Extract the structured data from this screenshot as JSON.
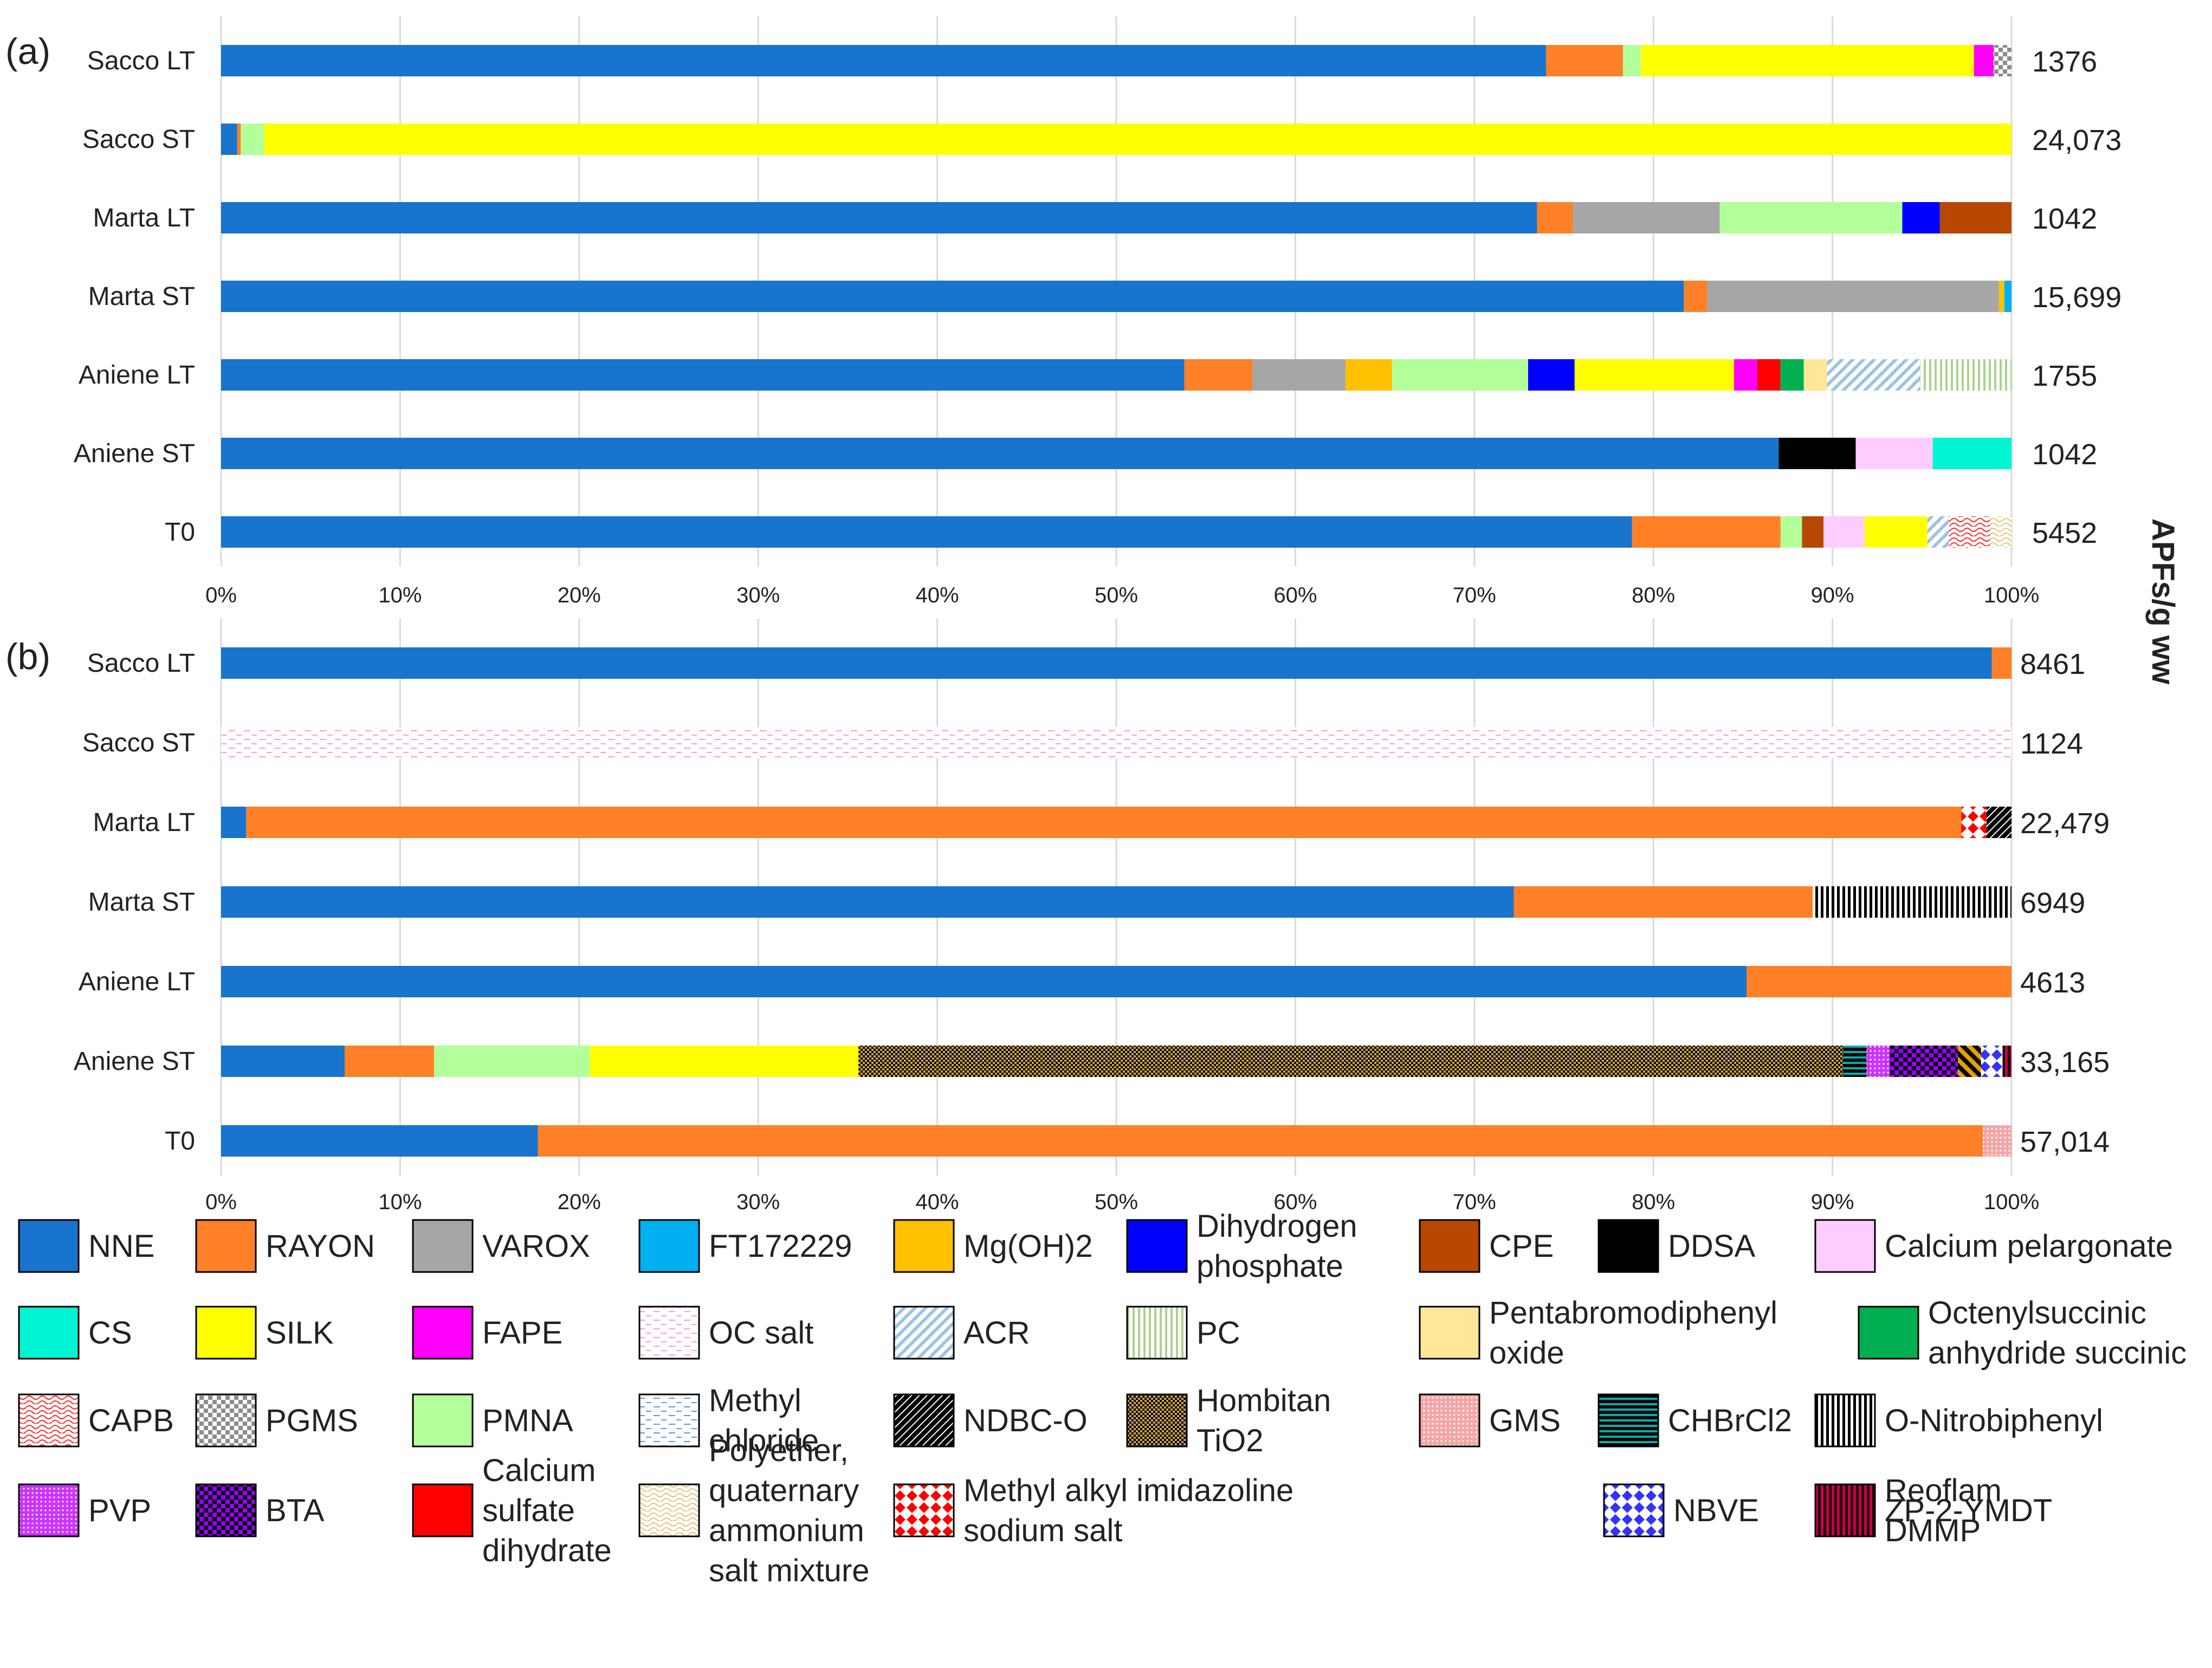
{
  "y_axis_title": "APFs/g ww",
  "colors": {
    "NNE": "#1874CD",
    "RAYON": "#FF8026",
    "VAROX": "#A6A6A6",
    "FT172229": "#00B0F0",
    "Mg(OH)2": "#FFC000",
    "Dihydrogen phosphate": "#0000FF",
    "CPE": "#B84700",
    "DDSA": "#000000",
    "Calcium pelargonate": "#FFCCFF",
    "CS": "#00F5D4",
    "SILK": "#FFFF00",
    "FAPE": "#FF00FF",
    "OC salt": "#FF99DD",
    "ACR": "#9DC3E6",
    "PC": "#A9D18E",
    "Pentabromodiphenyl oxide": "#FFE699",
    "Octenylsuccinic anhydride succinic": "#00B050",
    "CAPB": "#FF2020",
    "PGMS": "#8C8C8C",
    "PMNA": "#B3FF99",
    "Methyl chloride": "#5B9BD5",
    "NDBC-O": "#000000",
    "Hombitan TiO2": "#C9A24B",
    "GMS": "#F4A6A6",
    "CHBrCl2": "#00B0B0",
    "O-Nitrobiphenyl": "#000000",
    "PVP": "#CC33FF",
    "BTA": "#9900FF",
    "Calcium sulfate dihydrate": "#FF0000",
    "Polyether, quaternary ammonium salt mixture": "#E8C070",
    "Methyl alkyl imidazoline sodium salt": "#FF0000",
    "NBVE": "#3333FF",
    "Reoflam DMMP": "#E8A000",
    "ZP-2-YMDT": "#CC0044"
  },
  "chart_data": [
    {
      "type": "bar",
      "orientation": "horizontal",
      "stacking": "percent",
      "panel_label": "(a)",
      "categories": [
        "Sacco LT",
        "Sacco ST",
        "Marta LT",
        "Marta ST",
        "Aniene LT",
        "Aniene ST",
        "T0"
      ],
      "totals": [
        "1376",
        "24,073",
        "1042",
        "15,699",
        "1755",
        "1042",
        "5452"
      ],
      "xlim": [
        0,
        100
      ],
      "x_ticks": [
        "0%",
        "10%",
        "20%",
        "30%",
        "40%",
        "50%",
        "60%",
        "70%",
        "80%",
        "90%",
        "100%"
      ],
      "grid": true,
      "rows": [
        {
          "category": "Sacco LT",
          "segments": [
            {
              "name": "NNE",
              "value": 74
            },
            {
              "name": "RAYON",
              "value": 4.3
            },
            {
              "name": "PMNA",
              "value": 1
            },
            {
              "name": "SILK",
              "value": 18.6
            },
            {
              "name": "FAPE",
              "value": 1.1
            },
            {
              "name": "PGMS",
              "value": 1
            }
          ]
        },
        {
          "category": "Sacco ST",
          "segments": [
            {
              "name": "NNE",
              "value": 0.9
            },
            {
              "name": "RAYON",
              "value": 0.2
            },
            {
              "name": "PMNA",
              "value": 1.3
            },
            {
              "name": "SILK",
              "value": 97.6
            }
          ]
        },
        {
          "category": "Marta LT",
          "segments": [
            {
              "name": "NNE",
              "value": 73.5
            },
            {
              "name": "RAYON",
              "value": 2
            },
            {
              "name": "VAROX",
              "value": 8.2
            },
            {
              "name": "PMNA",
              "value": 10.2
            },
            {
              "name": "Dihydrogen phosphate",
              "value": 2.1
            },
            {
              "name": "CPE",
              "value": 4
            }
          ]
        },
        {
          "category": "Marta ST",
          "segments": [
            {
              "name": "NNE",
              "value": 81.7
            },
            {
              "name": "RAYON",
              "value": 1.3
            },
            {
              "name": "VAROX",
              "value": 16.3
            },
            {
              "name": "Mg(OH)2",
              "value": 0.3
            },
            {
              "name": "FT172229",
              "value": 0.4
            }
          ]
        },
        {
          "category": "Aniene LT",
          "segments": [
            {
              "name": "NNE",
              "value": 53.8
            },
            {
              "name": "RAYON",
              "value": 3.8
            },
            {
              "name": "VAROX",
              "value": 5.2
            },
            {
              "name": "Mg(OH)2",
              "value": 2.6
            },
            {
              "name": "PMNA",
              "value": 7.6
            },
            {
              "name": "Dihydrogen phosphate",
              "value": 2.6
            },
            {
              "name": "SILK",
              "value": 8.9
            },
            {
              "name": "FAPE",
              "value": 1.3
            },
            {
              "name": "Calcium sulfate dihydrate",
              "value": 1.3
            },
            {
              "name": "Octenylsuccinic anhydride succinic",
              "value": 1.3
            },
            {
              "name": "Pentabromodiphenyl oxide",
              "value": 1.3
            },
            {
              "name": "ACR",
              "value": 5.2
            },
            {
              "name": "PC",
              "value": 5.1
            }
          ]
        },
        {
          "category": "Aniene ST",
          "segments": [
            {
              "name": "NNE",
              "value": 87
            },
            {
              "name": "DDSA",
              "value": 4.3
            },
            {
              "name": "Calcium pelargonate",
              "value": 4.3
            },
            {
              "name": "CS",
              "value": 4.4
            }
          ]
        },
        {
          "category": "T0",
          "segments": [
            {
              "name": "NNE",
              "value": 78.8
            },
            {
              "name": "RAYON",
              "value": 8.3
            },
            {
              "name": "PMNA",
              "value": 1.2
            },
            {
              "name": "CPE",
              "value": 1.2
            },
            {
              "name": "Calcium pelargonate",
              "value": 2.3
            },
            {
              "name": "SILK",
              "value": 3.5
            },
            {
              "name": "ACR",
              "value": 1.2
            },
            {
              "name": "CAPB",
              "value": 2.3
            },
            {
              "name": "Polyether, quaternary ammonium salt mixture",
              "value": 1.2
            }
          ]
        }
      ]
    },
    {
      "type": "bar",
      "orientation": "horizontal",
      "stacking": "percent",
      "panel_label": "(b)",
      "categories": [
        "Sacco LT",
        "Sacco ST",
        "Marta LT",
        "Marta ST",
        "Aniene LT",
        "Aniene ST",
        "T0"
      ],
      "totals": [
        "8461",
        "1124",
        "22,479",
        "6949",
        "4613",
        "33,165",
        "57,014"
      ],
      "xlim": [
        0,
        100
      ],
      "x_ticks": [
        "0%",
        "10%",
        "20%",
        "30%",
        "40%",
        "50%",
        "60%",
        "70%",
        "80%",
        "90%",
        "100%"
      ],
      "grid": true,
      "rows": [
        {
          "category": "Sacco LT",
          "segments": [
            {
              "name": "NNE",
              "value": 98.9
            },
            {
              "name": "RAYON",
              "value": 1.1
            }
          ]
        },
        {
          "category": "Sacco ST",
          "segments": [
            {
              "name": "OC salt",
              "value": 100
            }
          ]
        },
        {
          "category": "Marta LT",
          "segments": [
            {
              "name": "NNE",
              "value": 1.4
            },
            {
              "name": "RAYON",
              "value": 95.8
            },
            {
              "name": "Methyl alkyl imidazoline sodium salt",
              "value": 1.4
            },
            {
              "name": "NDBC-O",
              "value": 1.4
            }
          ]
        },
        {
          "category": "Marta ST",
          "segments": [
            {
              "name": "NNE",
              "value": 72.2
            },
            {
              "name": "RAYON",
              "value": 16.7
            },
            {
              "name": "O-Nitrobiphenyl",
              "value": 11.1
            }
          ]
        },
        {
          "category": "Aniene LT",
          "segments": [
            {
              "name": "NNE",
              "value": 85.2
            },
            {
              "name": "RAYON",
              "value": 14.8
            }
          ]
        },
        {
          "category": "Aniene ST",
          "segments": [
            {
              "name": "NNE",
              "value": 6.9
            },
            {
              "name": "RAYON",
              "value": 5
            },
            {
              "name": "PMNA",
              "value": 8.7
            },
            {
              "name": "SILK",
              "value": 15
            },
            {
              "name": "Hombitan TiO2",
              "value": 55
            },
            {
              "name": "CHBrCl2",
              "value": 1.3
            },
            {
              "name": "PVP",
              "value": 1.3
            },
            {
              "name": "BTA",
              "value": 3.8
            },
            {
              "name": "Reoflam DMMP",
              "value": 1.3
            },
            {
              "name": "NBVE",
              "value": 1.2
            },
            {
              "name": "ZP-2-YMDT",
              "value": 0.5
            }
          ]
        },
        {
          "category": "T0",
          "segments": [
            {
              "name": "NNE",
              "value": 17.7
            },
            {
              "name": "RAYON",
              "value": 80.7
            },
            {
              "name": "GMS",
              "value": 1.6
            }
          ]
        }
      ]
    }
  ],
  "legend": [
    {
      "label": "NNE",
      "swatch": "NNE",
      "pattern": "solid"
    },
    {
      "label": "RAYON",
      "swatch": "RAYON",
      "pattern": "solid"
    },
    {
      "label": "VAROX",
      "swatch": "VAROX",
      "pattern": "solid"
    },
    {
      "label": "FT172229",
      "swatch": "FT172229",
      "pattern": "solid"
    },
    {
      "label": "Mg(OH)2",
      "swatch": "Mg(OH)2",
      "pattern": "solid"
    },
    {
      "label": "Dihydrogen phosphate",
      "lines": [
        "Dihydrogen",
        "phosphate"
      ],
      "swatch": "Dihydrogen phosphate",
      "pattern": "solid"
    },
    {
      "label": "CPE",
      "swatch": "CPE",
      "pattern": "solid"
    },
    {
      "label": "DDSA",
      "swatch": "DDSA",
      "pattern": "solid"
    },
    {
      "label": "Calcium pelargonate",
      "swatch": "Calcium pelargonate",
      "pattern": "solid"
    },
    {
      "label": "CS",
      "swatch": "CS",
      "pattern": "solid"
    },
    {
      "label": "SILK",
      "swatch": "SILK",
      "pattern": "solid"
    },
    {
      "label": "FAPE",
      "swatch": "FAPE",
      "pattern": "solid"
    },
    {
      "label": "OC salt",
      "swatch": "OC salt",
      "pattern": "dashes"
    },
    {
      "label": "ACR",
      "swatch": "ACR",
      "pattern": "diag"
    },
    {
      "label": "PC",
      "swatch": "PC",
      "pattern": "vlines"
    },
    {
      "label": "Pentabromodiphenyl oxide",
      "lines": [
        "Pentabromodiphenyl",
        "oxide"
      ],
      "swatch": "Pentabromodiphenyl oxide",
      "pattern": "solid"
    },
    {
      "label": "Octenylsuccinic anhydride succinic",
      "lines": [
        "Octenylsuccinic",
        "anhydride succinic"
      ],
      "swatch": "Octenylsuccinic anhydride succinic",
      "pattern": "solid"
    },
    {
      "label": "CAPB",
      "swatch": "CAPB",
      "pattern": "wave"
    },
    {
      "label": "PGMS",
      "swatch": "PGMS",
      "pattern": "checker"
    },
    {
      "label": "PMNA",
      "swatch": "PMNA",
      "pattern": "solid"
    },
    {
      "label": "Methyl chloride",
      "lines": [
        "Methyl",
        "chloride"
      ],
      "swatch": "Methyl chloride",
      "pattern": "dashes"
    },
    {
      "label": "NDBC-O",
      "swatch": "NDBC-O",
      "pattern": "blackdiag"
    },
    {
      "label": "Hombitan TiO2",
      "lines": [
        "Hombitan",
        "TiO2"
      ],
      "swatch": "Hombitan TiO2",
      "pattern": "finechecker"
    },
    {
      "label": "GMS",
      "swatch": "GMS",
      "pattern": "dots"
    },
    {
      "label": "CHBrCl2",
      "swatch": "CHBrCl2",
      "pattern": "hlines"
    },
    {
      "label": "O-Nitrobiphenyl",
      "swatch": "O-Nitrobiphenyl",
      "pattern": "vblack"
    },
    {
      "label": "PVP",
      "swatch": "PVP",
      "pattern": "dots"
    },
    {
      "label": "BTA",
      "swatch": "BTA",
      "pattern": "checker"
    },
    {
      "label": "Calcium sulfate dihydrate",
      "lines": [
        "Calcium",
        "sulfate",
        "dihydrate"
      ],
      "swatch": "Calcium sulfate dihydrate",
      "pattern": "solid"
    },
    {
      "label": "Polyether, quaternary ammonium salt mixture",
      "lines": [
        "Polyether,",
        "quaternary",
        "ammonium",
        "salt mixture"
      ],
      "swatch": "Polyether, quaternary ammonium salt mixture",
      "pattern": "wave"
    },
    {
      "label": "Methyl alkyl imidazoline sodium salt",
      "lines": [
        "Methyl alkyl imidazoline",
        "sodium salt"
      ],
      "swatch": "Methyl alkyl imidazoline sodium salt",
      "pattern": "diamond"
    },
    {
      "label": "NBVE",
      "swatch": "NBVE",
      "pattern": "diamond"
    },
    {
      "label": "Reoflam DMMP",
      "lines": [
        "Reoflam",
        "DMMP"
      ],
      "swatch": "Reoflam DMMP",
      "pattern": "thickdiag"
    },
    {
      "label": "ZP-2-YMDT",
      "swatch": "ZP-2-YMDT",
      "pattern": "vlinesdark"
    }
  ]
}
